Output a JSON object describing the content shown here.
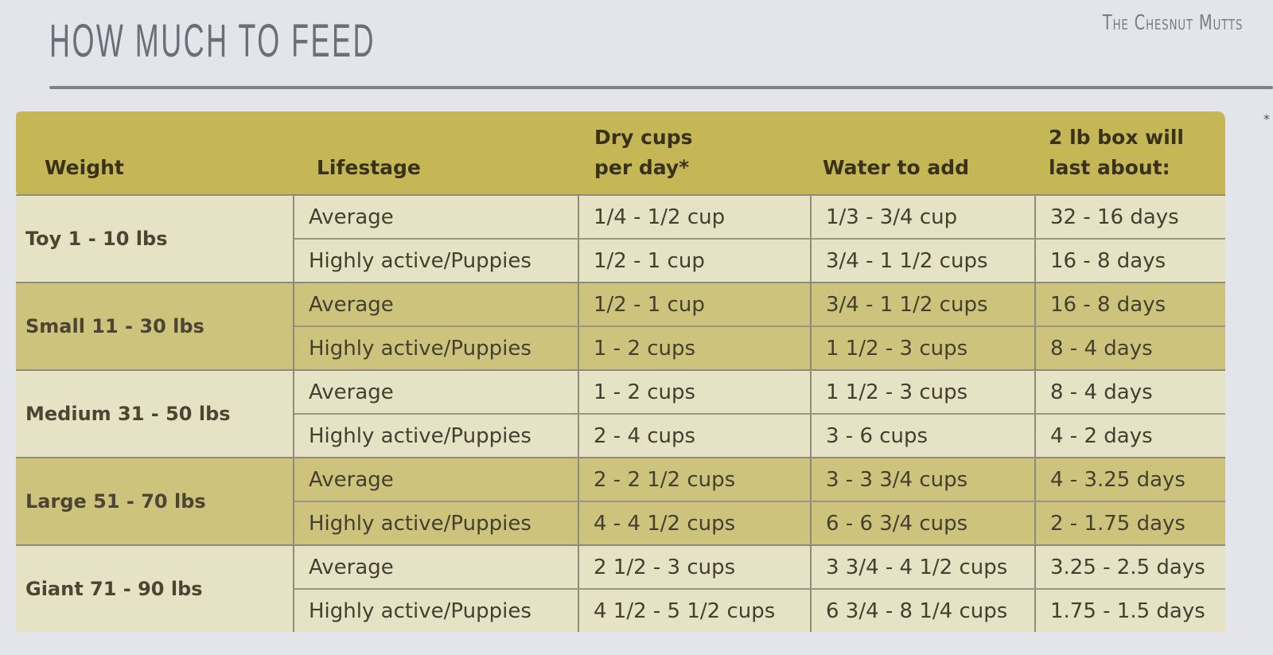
{
  "title": "HOW MUCH TO FEED",
  "brand": "The Chesnut Mutts",
  "footnote_mark": "*",
  "colors": {
    "header": "#c5b755",
    "light_row": "#e6e2c5",
    "dark_row": "#cec37c"
  },
  "headers": {
    "weight": "Weight",
    "lifestage": "Lifestage",
    "dry_line1": "Dry cups",
    "dry_line2": "per day*",
    "water": "Water to add",
    "box_line1": "2 lb box will",
    "box_line2": "last about:"
  },
  "groups": [
    {
      "weight": "Toy 1 - 10 lbs",
      "rows": [
        [
          "Average",
          "1/4 - 1/2 cup",
          "1/3 - 3/4 cup",
          "32 - 16 days"
        ],
        [
          "Highly active/Puppies",
          "1/2 - 1 cup",
          "3/4 - 1 1/2 cups",
          "16 - 8 days"
        ]
      ]
    },
    {
      "weight": "Small 11 - 30 lbs",
      "rows": [
        [
          "Average",
          "1/2 - 1 cup",
          "3/4 - 1 1/2 cups",
          "16 - 8 days"
        ],
        [
          "Highly active/Puppies",
          "1 - 2 cups",
          "1 1/2 - 3 cups",
          "8 - 4 days"
        ]
      ]
    },
    {
      "weight": "Medium 31 - 50 lbs",
      "rows": [
        [
          "Average",
          "1 - 2 cups",
          "1 1/2 - 3 cups",
          "8 - 4 days"
        ],
        [
          "Highly active/Puppies",
          "2 - 4 cups",
          "3 - 6 cups",
          "4 - 2 days"
        ]
      ]
    },
    {
      "weight": "Large 51 - 70 lbs",
      "rows": [
        [
          "Average",
          "2 - 2 1/2 cups",
          "3 - 3 3/4 cups",
          "4 - 3.25 days"
        ],
        [
          "Highly active/Puppies",
          "4 - 4 1/2 cups",
          "6 - 6 3/4 cups",
          "2 - 1.75 days"
        ]
      ]
    },
    {
      "weight": "Giant 71 - 90 lbs",
      "rows": [
        [
          "Average",
          "2 1/2 - 3 cups",
          "3 3/4 - 4 1/2 cups",
          "3.25 - 2.5 days"
        ],
        [
          "Highly active/Puppies",
          "4 1/2 - 5 1/2 cups",
          "6 3/4 - 8 1/4 cups",
          "1.75 - 1.5 days"
        ]
      ]
    }
  ]
}
